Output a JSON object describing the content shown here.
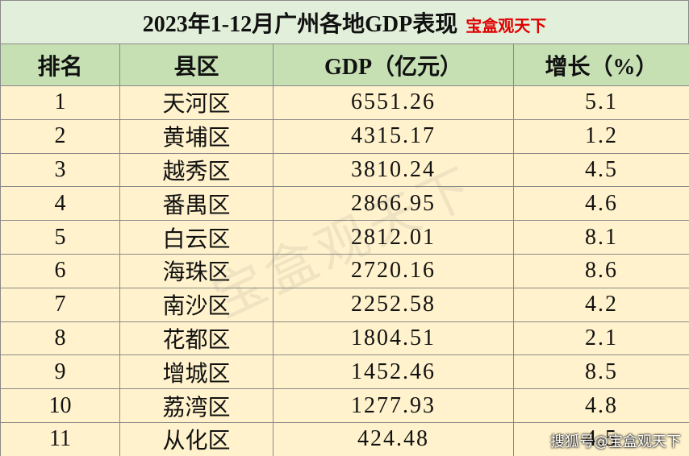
{
  "title": {
    "main": "2023年1-12月广州各地GDP表现",
    "tag": "宝盒观天下"
  },
  "table": {
    "header": [
      "排名",
      "县区",
      "GDP（亿元）",
      "增长（%）"
    ],
    "rows": [
      [
        "1",
        "天河区",
        "6551.26",
        "5.1"
      ],
      [
        "2",
        "黄埔区",
        "4315.17",
        "1.2"
      ],
      [
        "3",
        "越秀区",
        "3810.24",
        "4.5"
      ],
      [
        "4",
        "番禺区",
        "2866.95",
        "4.6"
      ],
      [
        "5",
        "白云区",
        "2812.01",
        "8.1"
      ],
      [
        "6",
        "海珠区",
        "2720.16",
        "8.6"
      ],
      [
        "7",
        "南沙区",
        "2252.58",
        "4.2"
      ],
      [
        "8",
        "花都区",
        "1804.51",
        "2.1"
      ],
      [
        "9",
        "增城区",
        "1452.46",
        "8.5"
      ],
      [
        "10",
        "荔湾区",
        "1277.93",
        "4.8"
      ],
      [
        "11",
        "从化区",
        "424.48",
        "4.5"
      ]
    ]
  },
  "watermark": "宝盒观天下",
  "footer": "搜狐号@宝盒观天下"
}
